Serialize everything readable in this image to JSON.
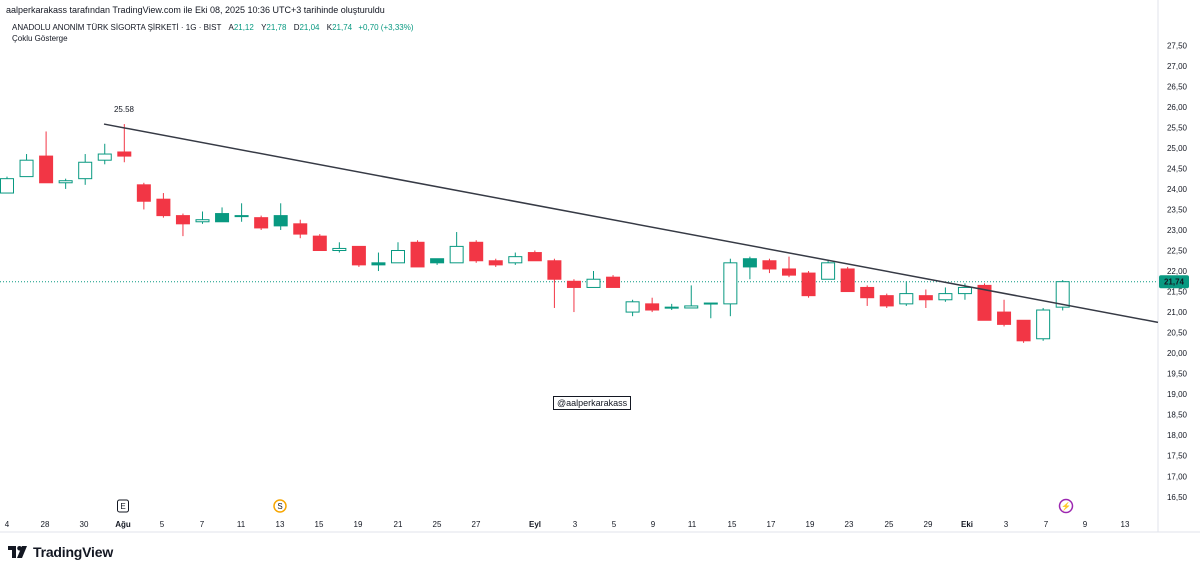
{
  "header": {
    "caption": "aalperkarakass tarafından TradingView.com ile Eki 08, 2025 10:36 UTC+3 tarihinde oluşturuldu",
    "symbol": "ANADOLU ANONİM TÜRK SİGORTA ŞİRKETİ · 1G · BIST",
    "ohlc": [
      {
        "key": "A",
        "value": "21,12"
      },
      {
        "key": "Y",
        "value": "21,78"
      },
      {
        "key": "D",
        "value": "21,04"
      },
      {
        "key": "K",
        "value": "21,74"
      }
    ],
    "change": "+0,70 (+3,33%)",
    "indicators": "Çoklu Gösterge"
  },
  "watermark": "@aalperkarakass",
  "brand": "TradingView",
  "colors": {
    "up": "#089981",
    "down": "#f23645",
    "line": "#363a45",
    "price_badge": "#089981"
  },
  "chart_data": {
    "type": "candlestick",
    "ylim": [
      16.3,
      27.75
    ],
    "y_ticks": [
      "16,50",
      "17,00",
      "17,50",
      "18,00",
      "18,50",
      "19,00",
      "19,50",
      "20,00",
      "20,50",
      "21,00",
      "21,50",
      "22,00",
      "22,50",
      "23,00",
      "23,50",
      "24,00",
      "24,50",
      "25,00",
      "25,50",
      "26,00",
      "26,50",
      "27,00",
      "27,50"
    ],
    "x_ticks": [
      "4",
      "28",
      "30",
      "Ağu",
      "5",
      "7",
      "11",
      "13",
      "15",
      "19",
      "21",
      "25",
      "27",
      "Eyl",
      "3",
      "5",
      "9",
      "11",
      "15",
      "17",
      "19",
      "23",
      "25",
      "29",
      "Eki",
      "3",
      "7",
      "9",
      "13"
    ],
    "last_price_label": "21,74",
    "last_price": 21.74,
    "annotation": {
      "label": "25.58",
      "value": 25.58
    },
    "trendline": {
      "start": 25.58,
      "end": 20.75
    },
    "events": [
      {
        "letter": "E",
        "kind": "earnings"
      },
      {
        "letter": "S",
        "kind": "dividend"
      },
      {
        "letter": "⚡",
        "kind": "news"
      }
    ],
    "candles": [
      {
        "o": 23.9,
        "h": 24.3,
        "l": 23.9,
        "c": 24.25,
        "filled": false
      },
      {
        "o": 24.3,
        "h": 24.85,
        "l": 24.3,
        "c": 24.7,
        "filled": false
      },
      {
        "o": 24.8,
        "h": 25.4,
        "l": 24.15,
        "c": 24.15,
        "filled": true
      },
      {
        "o": 24.15,
        "h": 24.25,
        "l": 24.0,
        "c": 24.2,
        "filled": false
      },
      {
        "o": 24.25,
        "h": 24.85,
        "l": 24.1,
        "c": 24.65,
        "filled": false
      },
      {
        "o": 24.7,
        "h": 25.1,
        "l": 24.6,
        "c": 24.85,
        "filled": false
      },
      {
        "o": 24.9,
        "h": 25.58,
        "l": 24.65,
        "c": 24.8,
        "filled": true
      },
      {
        "o": 24.1,
        "h": 24.15,
        "l": 23.5,
        "c": 23.7,
        "filled": true
      },
      {
        "o": 23.75,
        "h": 23.9,
        "l": 23.3,
        "c": 23.35,
        "filled": true
      },
      {
        "o": 23.35,
        "h": 23.4,
        "l": 22.85,
        "c": 23.15,
        "filled": true
      },
      {
        "o": 23.2,
        "h": 23.45,
        "l": 23.15,
        "c": 23.25,
        "filled": false
      },
      {
        "o": 23.2,
        "h": 23.55,
        "l": 23.2,
        "c": 23.4,
        "filled": true
      },
      {
        "o": 23.35,
        "h": 23.65,
        "l": 23.2,
        "c": 23.35,
        "filled": false
      },
      {
        "o": 23.3,
        "h": 23.35,
        "l": 23.0,
        "c": 23.05,
        "filled": true
      },
      {
        "o": 23.1,
        "h": 23.65,
        "l": 23.0,
        "c": 23.35,
        "filled": true
      },
      {
        "o": 23.15,
        "h": 23.25,
        "l": 22.8,
        "c": 22.9,
        "filled": true
      },
      {
        "o": 22.85,
        "h": 22.9,
        "l": 22.5,
        "c": 22.5,
        "filled": true
      },
      {
        "o": 22.5,
        "h": 22.7,
        "l": 22.45,
        "c": 22.55,
        "filled": false
      },
      {
        "o": 22.6,
        "h": 22.6,
        "l": 22.1,
        "c": 22.15,
        "filled": true
      },
      {
        "o": 22.15,
        "h": 22.45,
        "l": 22.0,
        "c": 22.2,
        "filled": true
      },
      {
        "o": 22.2,
        "h": 22.7,
        "l": 22.2,
        "c": 22.5,
        "filled": false
      },
      {
        "o": 22.7,
        "h": 22.75,
        "l": 22.1,
        "c": 22.1,
        "filled": true
      },
      {
        "o": 22.2,
        "h": 22.3,
        "l": 22.15,
        "c": 22.3,
        "filled": true
      },
      {
        "o": 22.2,
        "h": 22.95,
        "l": 22.2,
        "c": 22.6,
        "filled": false
      },
      {
        "o": 22.7,
        "h": 22.75,
        "l": 22.2,
        "c": 22.25,
        "filled": true
      },
      {
        "o": 22.25,
        "h": 22.3,
        "l": 22.1,
        "c": 22.15,
        "filled": true
      },
      {
        "o": 22.2,
        "h": 22.45,
        "l": 22.15,
        "c": 22.35,
        "filled": false
      },
      {
        "o": 22.45,
        "h": 22.5,
        "l": 22.25,
        "c": 22.25,
        "filled": true
      },
      {
        "o": 22.25,
        "h": 22.3,
        "l": 21.1,
        "c": 21.8,
        "filled": true
      },
      {
        "o": 21.75,
        "h": 21.8,
        "l": 21.0,
        "c": 21.6,
        "filled": true
      },
      {
        "o": 21.6,
        "h": 22.0,
        "l": 21.6,
        "c": 21.8,
        "filled": false
      },
      {
        "o": 21.85,
        "h": 21.9,
        "l": 21.6,
        "c": 21.6,
        "filled": true
      },
      {
        "o": 21.0,
        "h": 21.3,
        "l": 20.9,
        "c": 21.25,
        "filled": false
      },
      {
        "o": 21.2,
        "h": 21.35,
        "l": 21.0,
        "c": 21.05,
        "filled": true
      },
      {
        "o": 21.1,
        "h": 21.2,
        "l": 21.05,
        "c": 21.12,
        "filled": false
      },
      {
        "o": 21.1,
        "h": 21.65,
        "l": 21.1,
        "c": 21.15,
        "filled": false
      },
      {
        "o": 21.2,
        "h": 21.2,
        "l": 20.85,
        "c": 21.22,
        "filled": false
      },
      {
        "o": 21.2,
        "h": 22.3,
        "l": 20.9,
        "c": 22.2,
        "filled": false
      },
      {
        "o": 22.1,
        "h": 22.35,
        "l": 21.8,
        "c": 22.3,
        "filled": true
      },
      {
        "o": 22.25,
        "h": 22.3,
        "l": 21.95,
        "c": 22.05,
        "filled": true
      },
      {
        "o": 22.05,
        "h": 22.35,
        "l": 21.85,
        "c": 21.9,
        "filled": true
      },
      {
        "o": 21.95,
        "h": 22.0,
        "l": 21.35,
        "c": 21.4,
        "filled": true
      },
      {
        "o": 21.8,
        "h": 22.25,
        "l": 21.8,
        "c": 22.2,
        "filled": false
      },
      {
        "o": 22.05,
        "h": 22.1,
        "l": 21.5,
        "c": 21.5,
        "filled": true
      },
      {
        "o": 21.6,
        "h": 21.65,
        "l": 21.15,
        "c": 21.35,
        "filled": true
      },
      {
        "o": 21.4,
        "h": 21.45,
        "l": 21.1,
        "c": 21.15,
        "filled": true
      },
      {
        "o": 21.2,
        "h": 21.75,
        "l": 21.15,
        "c": 21.45,
        "filled": false
      },
      {
        "o": 21.4,
        "h": 21.55,
        "l": 21.1,
        "c": 21.3,
        "filled": true
      },
      {
        "o": 21.3,
        "h": 21.6,
        "l": 21.25,
        "c": 21.45,
        "filled": false
      },
      {
        "o": 21.45,
        "h": 21.7,
        "l": 21.3,
        "c": 21.6,
        "filled": false
      },
      {
        "o": 21.65,
        "h": 21.7,
        "l": 20.8,
        "c": 20.8,
        "filled": true
      },
      {
        "o": 21.0,
        "h": 21.3,
        "l": 20.65,
        "c": 20.7,
        "filled": true
      },
      {
        "o": 20.8,
        "h": 20.8,
        "l": 20.25,
        "c": 20.3,
        "filled": true
      },
      {
        "o": 20.35,
        "h": 21.1,
        "l": 20.3,
        "c": 21.05,
        "filled": false
      },
      {
        "o": 21.12,
        "h": 21.78,
        "l": 21.04,
        "c": 21.74,
        "filled": false
      }
    ]
  }
}
